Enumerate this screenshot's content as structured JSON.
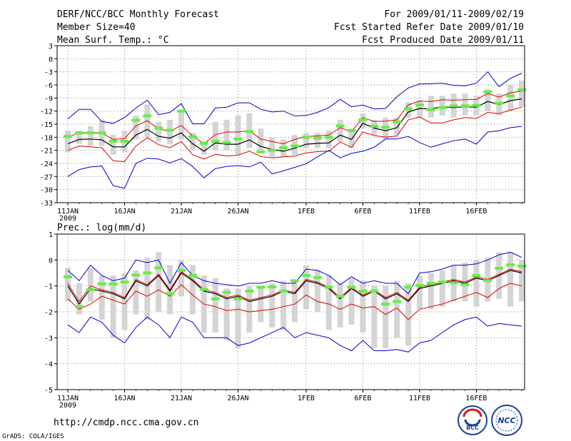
{
  "header": {
    "title": "DERF/NCC/BCC Monthly Forecast",
    "member_size": "Member Size=40",
    "variable": "Mean Surf. Temp.: °C",
    "period": "For 2009/01/11-2009/02/19",
    "start_date": "Fcst Started Refer Date 2009/01/10",
    "produced_date": "Fcst Produced Date 2009/01/11"
  },
  "footer": {
    "url": "http://cmdp.ncc.cma.gov.cn",
    "grads": "GrADS: COLA/IGES",
    "logo_bcc": "BCC",
    "logo_ncc": "NCC"
  },
  "colors": {
    "mean": "#000000",
    "spread": "#e00000",
    "extreme": "#0000cc",
    "box": "#d4d4d4",
    "marker": "#66ee44",
    "grid": "#888888"
  },
  "chart_data": [
    {
      "type": "line",
      "title": "",
      "ylabel": "Mean Surf. Temp.: °C",
      "ylim": [
        -33,
        3
      ],
      "yticks": [
        3,
        0,
        -3,
        -6,
        -9,
        -12,
        -15,
        -18,
        -21,
        -24,
        -27,
        -30,
        -33
      ],
      "xticks": [
        {
          "day": 0,
          "label": "11JAN",
          "sub": "2009"
        },
        {
          "day": 5,
          "label": "16JAN"
        },
        {
          "day": 10,
          "label": "21JAN"
        },
        {
          "day": 15,
          "label": "26JAN"
        },
        {
          "day": 21,
          "label": "1FEB"
        },
        {
          "day": 26,
          "label": "6FEB"
        },
        {
          "day": 31,
          "label": "11FEB"
        },
        {
          "day": 36,
          "label": "16FEB"
        }
      ],
      "series": [
        {
          "name": "ensemble mean",
          "values": [
            -19.5,
            -18.5,
            -18.4,
            -18.6,
            -20.2,
            -20.2,
            -17.5,
            -16.2,
            -17.8,
            -18.2,
            -17,
            -19.5,
            -21.2,
            -19.3,
            -19.6,
            -19.6,
            -18.6,
            -20.1,
            -20.8,
            -21.2,
            -20.5,
            -19.6,
            -19.4,
            -19.3,
            -17.5,
            -18.5,
            -14.8,
            -15.9,
            -16.5,
            -15.8,
            -12.2,
            -11.4,
            -11.5,
            -11,
            -11.2,
            -11,
            -11.1,
            -9.8,
            -10.5,
            -9.6,
            -9.2
          ]
        },
        {
          "name": "mean plus spread",
          "values": [
            -18,
            -17,
            -17,
            -17,
            -18.5,
            -18.3,
            -15.4,
            -14.2,
            -16.1,
            -16.6,
            -15.3,
            -17.7,
            -19.5,
            -17.4,
            -16.8,
            -16.8,
            -16.5,
            -18.4,
            -19,
            -19.5,
            -18.5,
            -17.8,
            -17.7,
            -17.5,
            -15.8,
            -16.7,
            -13.5,
            -14.4,
            -14.3,
            -14,
            -10.6,
            -9.7,
            -9.8,
            -9.4,
            -9.5,
            -9.4,
            -9.3,
            -8,
            -8.8,
            -7.8,
            -7.4
          ]
        },
        {
          "name": "mean minus spread",
          "values": [
            -21,
            -20,
            -20.2,
            -20.4,
            -23.4,
            -23.6,
            -20,
            -18.1,
            -19.7,
            -20.4,
            -19,
            -22,
            -23,
            -21.9,
            -22.3,
            -22.1,
            -21.2,
            -22.4,
            -22.7,
            -22.5,
            -22.3,
            -21.6,
            -21.3,
            -21.2,
            -19.1,
            -20.3,
            -16.8,
            -17.6,
            -18,
            -17.7,
            -14,
            -13.4,
            -14.7,
            -14.7,
            -14,
            -13.5,
            -13.7,
            -12.3,
            -12.6,
            -11.8,
            -11.1
          ]
        },
        {
          "name": "maximum",
          "values": [
            -13.8,
            -11.6,
            -11.6,
            -14.4,
            -14.8,
            -13.5,
            -11.3,
            -9.5,
            -12.8,
            -12.3,
            -10.3,
            -14.9,
            -14.9,
            -11.3,
            -11.1,
            -10.1,
            -10.1,
            -11.6,
            -12.2,
            -12,
            -13.1,
            -13,
            -12.3,
            -11.2,
            -9.3,
            -11,
            -10.6,
            -11.5,
            -11.4,
            -8.7,
            -6.7,
            -5.8,
            -5.7,
            -5.6,
            -6.1,
            -6.2,
            -5.6,
            -3,
            -6.4,
            -4.5,
            -3.3
          ]
        },
        {
          "name": "minimum",
          "values": [
            -27,
            -25.4,
            -24.8,
            -24.6,
            -29.1,
            -29.7,
            -24,
            -22.8,
            -23,
            -23.9,
            -22.9,
            -24.7,
            -27.3,
            -25.2,
            -24.7,
            -24.5,
            -24.8,
            -23.7,
            -26.4,
            -25.7,
            -24.9,
            -24.1,
            -22.5,
            -21,
            -22.7,
            -21.7,
            -21.2,
            -20.3,
            -18.4,
            -18.4,
            -17.8,
            -19.2,
            -20.3,
            -19.5,
            -18.8,
            -18.4,
            -19.6,
            -16.8,
            -16.5,
            -15.8,
            -15.5
          ]
        }
      ],
      "boxes": [
        [
          -21.5,
          -16.5
        ],
        [
          -19.5,
          -16.5
        ],
        [
          -20,
          -15.5
        ],
        [
          -20,
          -14
        ],
        [
          -22,
          -17.5
        ],
        [
          -21.5,
          -16.5
        ],
        [
          -18.5,
          -13
        ],
        [
          -18,
          -10.5
        ],
        [
          -19,
          -14.5
        ],
        [
          -19.5,
          -14
        ],
        [
          -18.5,
          -12
        ],
        [
          -21,
          -17
        ],
        [
          -22,
          -19
        ],
        [
          -21,
          -14.5
        ],
        [
          -21,
          -14
        ],
        [
          -22,
          -13
        ],
        [
          -20.5,
          -12.5
        ],
        [
          -21.5,
          -16
        ],
        [
          -22.5,
          -18
        ],
        [
          -22.5,
          -18.5
        ],
        [
          -22,
          -17.5
        ],
        [
          -20.5,
          -17
        ],
        [
          -20.5,
          -17
        ],
        [
          -20.5,
          -16.5
        ],
        [
          -19,
          -14
        ],
        [
          -20.5,
          -16
        ],
        [
          -16,
          -12.5
        ],
        [
          -17.5,
          -14
        ],
        [
          -18.5,
          -13.5
        ],
        [
          -17.5,
          -13.5
        ],
        [
          -13.5,
          -10
        ],
        [
          -13.5,
          -9.5
        ],
        [
          -13.5,
          -8.5
        ],
        [
          -13,
          -8.5
        ],
        [
          -13.5,
          -8
        ],
        [
          -13,
          -8
        ],
        [
          -13,
          -8.5
        ],
        [
          -12,
          -7
        ],
        [
          -13,
          -8
        ],
        [
          -12,
          -6
        ],
        [
          -11,
          -5
        ]
      ],
      "markers": [
        -17.8,
        -17,
        -17,
        -17,
        -18.9,
        -18.9,
        -14.1,
        -13.1,
        -15.9,
        -16.4,
        -12,
        -17.9,
        -19.4,
        -18.9,
        -19.2,
        -18.4,
        -16.7,
        -21.4,
        -21,
        -20.4,
        -20,
        -18,
        -18.2,
        -18,
        -15.4,
        -16.5,
        -14,
        -15.5,
        -15.7,
        -14.5,
        -11.5,
        -10.6,
        -11.7,
        -11.2,
        -10.8,
        -10.8,
        -10.7,
        -7.6,
        -10.2,
        -8.5,
        -7.1
      ]
    },
    {
      "type": "line",
      "title": "",
      "ylabel": "Prec.: log(mm/d)",
      "ylim": [
        -5,
        1
      ],
      "yticks": [
        1,
        0,
        -1,
        -2,
        -3,
        -4,
        -5
      ],
      "xticks": [
        {
          "day": 0,
          "label": "11JAN",
          "sub": "2009"
        },
        {
          "day": 5,
          "label": "16JAN"
        },
        {
          "day": 10,
          "label": "21JAN"
        },
        {
          "day": 15,
          "label": "26JAN"
        },
        {
          "day": 21,
          "label": "1FEB"
        },
        {
          "day": 26,
          "label": "6FEB"
        },
        {
          "day": 31,
          "label": "11FEB"
        },
        {
          "day": 36,
          "label": "16FEB"
        }
      ],
      "series": [
        {
          "name": "ensemble mean",
          "values": [
            -1,
            -1.7,
            -1.1,
            -1.2,
            -1.3,
            -1.5,
            -0.8,
            -1,
            -0.6,
            -1.2,
            -0.5,
            -0.8,
            -1.2,
            -1.3,
            -1.5,
            -1.4,
            -1.6,
            -1.5,
            -1.4,
            -1.2,
            -1.3,
            -0.8,
            -0.9,
            -1.1,
            -1.5,
            -1.1,
            -1.4,
            -1.2,
            -1.5,
            -1.3,
            -1.6,
            -1.1,
            -1,
            -0.9,
            -0.8,
            -0.9,
            -0.7,
            -0.8,
            -0.6,
            -0.4,
            -0.5
          ]
        },
        {
          "name": "mean plus spread",
          "values": [
            -0.9,
            -1.6,
            -1,
            -1.15,
            -1.25,
            -1.45,
            -0.75,
            -0.95,
            -0.55,
            -1.15,
            -0.45,
            -0.75,
            -1.15,
            -1.25,
            -1.45,
            -1.35,
            -1.55,
            -1.45,
            -1.35,
            -1.15,
            -1.25,
            -0.75,
            -0.85,
            -1.05,
            -1.45,
            -1.05,
            -1.35,
            -1.15,
            -1.45,
            -1.25,
            -1.55,
            -1.05,
            -0.95,
            -0.85,
            -0.75,
            -0.85,
            -0.65,
            -0.75,
            -0.55,
            -0.35,
            -0.45
          ]
        },
        {
          "name": "mean minus spread",
          "values": [
            -1.5,
            -1.9,
            -1.7,
            -1.4,
            -1.55,
            -1.7,
            -1.2,
            -1.4,
            -1.15,
            -1.4,
            -0.95,
            -1.35,
            -1.7,
            -1.8,
            -1.95,
            -1.9,
            -2,
            -1.95,
            -1.9,
            -1.8,
            -1.7,
            -1.35,
            -1.6,
            -1.7,
            -1.9,
            -1.7,
            -1.85,
            -1.8,
            -2.1,
            -1.85,
            -2.3,
            -1.9,
            -1.8,
            -1.7,
            -1.55,
            -1.4,
            -1.25,
            -1.45,
            -1.1,
            -0.9,
            -1
          ]
        },
        {
          "name": "maximum",
          "values": [
            -0.4,
            -0.8,
            -0.2,
            -0.6,
            -0.8,
            -0.7,
            0,
            -0.1,
            0,
            -0.9,
            -0.1,
            -0.6,
            -0.8,
            -0.9,
            -0.95,
            -1,
            -0.9,
            -0.9,
            -0.8,
            -0.9,
            -0.9,
            -0.35,
            -0.4,
            -0.6,
            -0.95,
            -0.65,
            -0.9,
            -0.8,
            -0.9,
            -0.9,
            -1.3,
            -0.5,
            -0.45,
            -0.35,
            -0.2,
            -0.2,
            -0.15,
            0,
            0.2,
            0.3,
            0.1
          ]
        },
        {
          "name": "minimum",
          "values": [
            -2.5,
            -2.8,
            -2.2,
            -2.4,
            -2.9,
            -3.2,
            -2.6,
            -2.2,
            -2.5,
            -3,
            -2.2,
            -2.4,
            -3,
            -3,
            -3,
            -3.3,
            -3.2,
            -3,
            -2.8,
            -2.6,
            -3,
            -2.8,
            -2.9,
            -3,
            -3.3,
            -3.5,
            -3.1,
            -3.5,
            -3.5,
            -3.45,
            -3.55,
            -3.2,
            -3.1,
            -2.8,
            -2.5,
            -2.3,
            -2.2,
            -2.55,
            -2.45,
            -2.5,
            -2.55
          ]
        }
      ],
      "boxes": [
        [
          -1.6,
          -0.3
        ],
        [
          -2.1,
          -0.9
        ],
        [
          -1.6,
          -0.3
        ],
        [
          -2.3,
          -0.6
        ],
        [
          -3,
          -0.6
        ],
        [
          -2.7,
          -0.5
        ],
        [
          -2.1,
          -0.4
        ],
        [
          -2.3,
          0.1
        ],
        [
          -2,
          0.3
        ],
        [
          -2.1,
          -0.2
        ],
        [
          -1.4,
          0
        ],
        [
          -2.1,
          -0.2
        ],
        [
          -2.8,
          -0.6
        ],
        [
          -2.8,
          -0.7
        ],
        [
          -3.1,
          -1.1
        ],
        [
          -3.4,
          -1.1
        ],
        [
          -2.8,
          -1
        ],
        [
          -2.4,
          -1
        ],
        [
          -2.6,
          -0.9
        ],
        [
          -2.7,
          -0.8
        ],
        [
          -2.4,
          -0.8
        ],
        [
          -1.9,
          -0.2
        ],
        [
          -2,
          -0.4
        ],
        [
          -2.7,
          -0.6
        ],
        [
          -2.6,
          -0.9
        ],
        [
          -2.5,
          -0.7
        ],
        [
          -2.8,
          -0.8
        ],
        [
          -3.4,
          -1
        ],
        [
          -3.4,
          -1
        ],
        [
          -3,
          -0.8
        ],
        [
          -3.3,
          -0.9
        ],
        [
          -1.9,
          -0.6
        ],
        [
          -1.9,
          -0.5
        ],
        [
          -1.8,
          -0.4
        ],
        [
          -1.6,
          -0.2
        ],
        [
          -1.6,
          -0.1
        ],
        [
          -1.8,
          0
        ],
        [
          -1.6,
          0.1
        ],
        [
          -1.5,
          0.3
        ],
        [
          -1.8,
          0.3
        ],
        [
          -1.6,
          0
        ]
      ],
      "markers": [
        -0.65,
        -1.8,
        -1.15,
        -0.92,
        -0.92,
        -0.85,
        -0.58,
        -0.5,
        -0.3,
        -1.3,
        -0.4,
        -0.6,
        -1.13,
        -1.5,
        -1.25,
        -1.5,
        -1.2,
        -1.05,
        -1.04,
        -1.2,
        -0.8,
        -0.6,
        -0.68,
        -1.05,
        -1.4,
        -1.05,
        -1.2,
        -1.2,
        -1.7,
        -1.6,
        -1.05,
        -0.98,
        -0.9,
        -0.85,
        -0.88,
        -0.95,
        -0.6,
        -0.8,
        -0.32,
        -0.19,
        -0.24
      ]
    }
  ]
}
